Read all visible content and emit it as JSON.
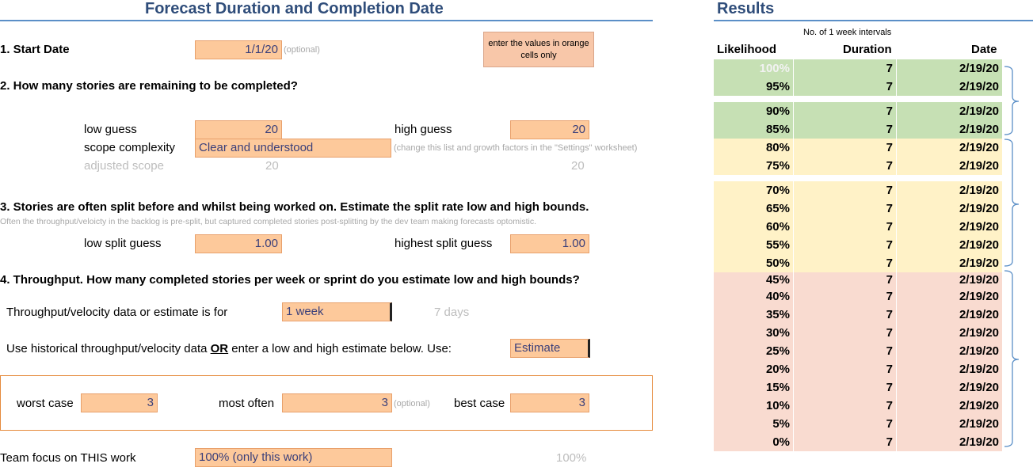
{
  "header": {
    "title": "Forecast Duration and Completion Date",
    "results_title": "Results"
  },
  "hint": "enter the values in orange cells only",
  "q1": {
    "label": "1. Start Date",
    "value": "1/1/20",
    "note": "(optional)"
  },
  "q2": {
    "label": "2. How many stories are remaining to be completed?",
    "low_label": "low guess",
    "low_value": "20",
    "high_label": "high guess",
    "high_value": "20",
    "complexity_label": "scope complexity",
    "complexity_value": "Clear and understood",
    "complexity_note": "(change this list and growth factors in the \"Settings\" worksheet)",
    "adjusted_label": "adjusted scope",
    "adjusted_low": "20",
    "adjusted_high": "20"
  },
  "q3": {
    "label": "3. Stories are often split before and whilst being worked on. Estimate the split rate low and high bounds.",
    "note": "Often the throughput/veloicty in the backlog is pre-split, but captured completed stories post-splitting by the dev team making forecasts optomistic.",
    "low_label": "low split guess",
    "low_value": "1.00",
    "high_label": "highest split guess",
    "high_value": "1.00"
  },
  "q4": {
    "label": "4. Throughput. How many completed stories per week or sprint do you estimate low and high bounds?",
    "period_label": "Throughput/velocity data or estimate is for",
    "period_value": "1 week",
    "period_days": "7  days",
    "source_label_pre": "Use historical throughput/velocity data ",
    "source_label_or": "OR",
    "source_label_post": " enter a low and high estimate below. Use:",
    "source_value": "Estimate",
    "worst_label": "worst case",
    "worst_value": "3",
    "often_label": "most often",
    "often_value": "3",
    "often_note": "(optional)",
    "best_label": "best case",
    "best_value": "3"
  },
  "focus": {
    "label": "Team focus on THIS work",
    "value": "100% (only this work)",
    "computed": "100%"
  },
  "results": {
    "intervals_note": "No. of 1 week intervals",
    "col_likelihood": "Likelihood",
    "col_duration": "Duration",
    "col_date": "Date",
    "rows": [
      {
        "likelihood": "100%",
        "duration": "7",
        "date": "2/19/20",
        "band": "green"
      },
      {
        "likelihood": "95%",
        "duration": "7",
        "date": "2/19/20",
        "band": "green"
      },
      {
        "likelihood": "90%",
        "duration": "7",
        "date": "2/19/20",
        "band": "green"
      },
      {
        "likelihood": "85%",
        "duration": "7",
        "date": "2/19/20",
        "band": "green"
      },
      {
        "likelihood": "80%",
        "duration": "7",
        "date": "2/19/20",
        "band": "yellow"
      },
      {
        "likelihood": "75%",
        "duration": "7",
        "date": "2/19/20",
        "band": "yellow"
      },
      {
        "likelihood": "70%",
        "duration": "7",
        "date": "2/19/20",
        "band": "yellow"
      },
      {
        "likelihood": "65%",
        "duration": "7",
        "date": "2/19/20",
        "band": "yellow"
      },
      {
        "likelihood": "60%",
        "duration": "7",
        "date": "2/19/20",
        "band": "yellow"
      },
      {
        "likelihood": "55%",
        "duration": "7",
        "date": "2/19/20",
        "band": "yellow"
      },
      {
        "likelihood": "50%",
        "duration": "7",
        "date": "2/19/20",
        "band": "yellow"
      },
      {
        "likelihood": "45%",
        "duration": "7",
        "date": "2/19/20",
        "band": "pink"
      },
      {
        "likelihood": "40%",
        "duration": "7",
        "date": "2/19/20",
        "band": "pink"
      },
      {
        "likelihood": "35%",
        "duration": "7",
        "date": "2/19/20",
        "band": "pink"
      },
      {
        "likelihood": "30%",
        "duration": "7",
        "date": "2/19/20",
        "band": "pink"
      },
      {
        "likelihood": "25%",
        "duration": "7",
        "date": "2/19/20",
        "band": "pink"
      },
      {
        "likelihood": "20%",
        "duration": "7",
        "date": "2/19/20",
        "band": "pink"
      },
      {
        "likelihood": "15%",
        "duration": "7",
        "date": "2/19/20",
        "band": "pink"
      },
      {
        "likelihood": "10%",
        "duration": "7",
        "date": "2/19/20",
        "band": "pink"
      },
      {
        "likelihood": "5%",
        "duration": "7",
        "date": "2/19/20",
        "band": "pink"
      },
      {
        "likelihood": "0%",
        "duration": "7",
        "date": "2/19/20",
        "band": "pink"
      }
    ]
  },
  "colors": {
    "input_fill": "#fdc99b",
    "green_band": "#c6e0b4",
    "yellow_band": "#fff2c7",
    "pink_band": "#f9dbd0",
    "title_blue": "#2f4d7a",
    "bracket_blue": "#5b8fc7"
  }
}
